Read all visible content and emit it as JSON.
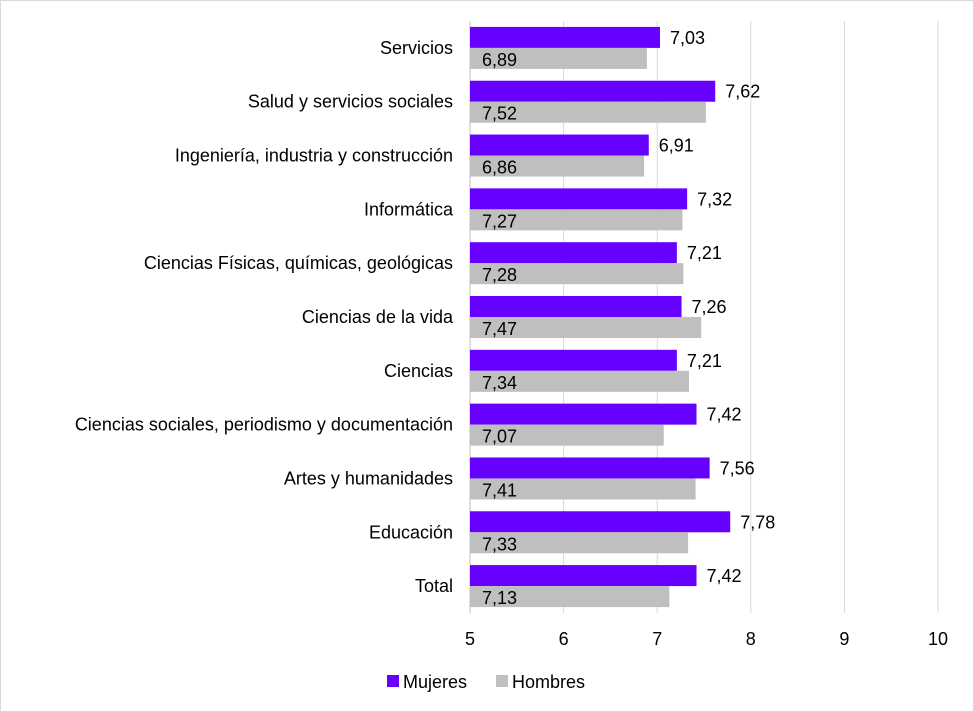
{
  "chart_data": {
    "type": "bar",
    "orientation": "horizontal",
    "categories": [
      "Servicios",
      "Salud y servicios sociales",
      "Ingeniería, industria y construcción",
      "Informática",
      "Ciencias Físicas, químicas, geológicas",
      "Ciencias de la vida",
      "Ciencias",
      "Ciencias sociales, periodismo y documentación",
      "Artes y humanidades",
      "Educación",
      "Total"
    ],
    "series": [
      {
        "name": "Mujeres",
        "color": "#6600FF",
        "values": [
          7.03,
          7.62,
          6.91,
          7.32,
          7.21,
          7.26,
          7.21,
          7.42,
          7.56,
          7.78,
          7.42
        ],
        "labels": [
          "7,03",
          "7,62",
          "6,91",
          "7,32",
          "7,21",
          "7,26",
          "7,21",
          "7,42",
          "7,56",
          "7,78",
          "7,42"
        ]
      },
      {
        "name": "Hombres",
        "color": "#BFBFBF",
        "values": [
          6.89,
          7.52,
          6.86,
          7.27,
          7.28,
          7.47,
          7.34,
          7.07,
          7.41,
          7.33,
          7.13
        ],
        "labels": [
          "6,89",
          "7,52",
          "6,86",
          "7,27",
          "7,28",
          "7,47",
          "7,34",
          "7,07",
          "7,41",
          "7,33",
          "7,13"
        ]
      }
    ],
    "xlim": [
      5,
      10
    ],
    "xticks": [
      "5",
      "6",
      "7",
      "8",
      "9",
      "10"
    ],
    "grid": "vertical",
    "legend": "bottom",
    "title": "",
    "xlabel": "",
    "ylabel": ""
  }
}
